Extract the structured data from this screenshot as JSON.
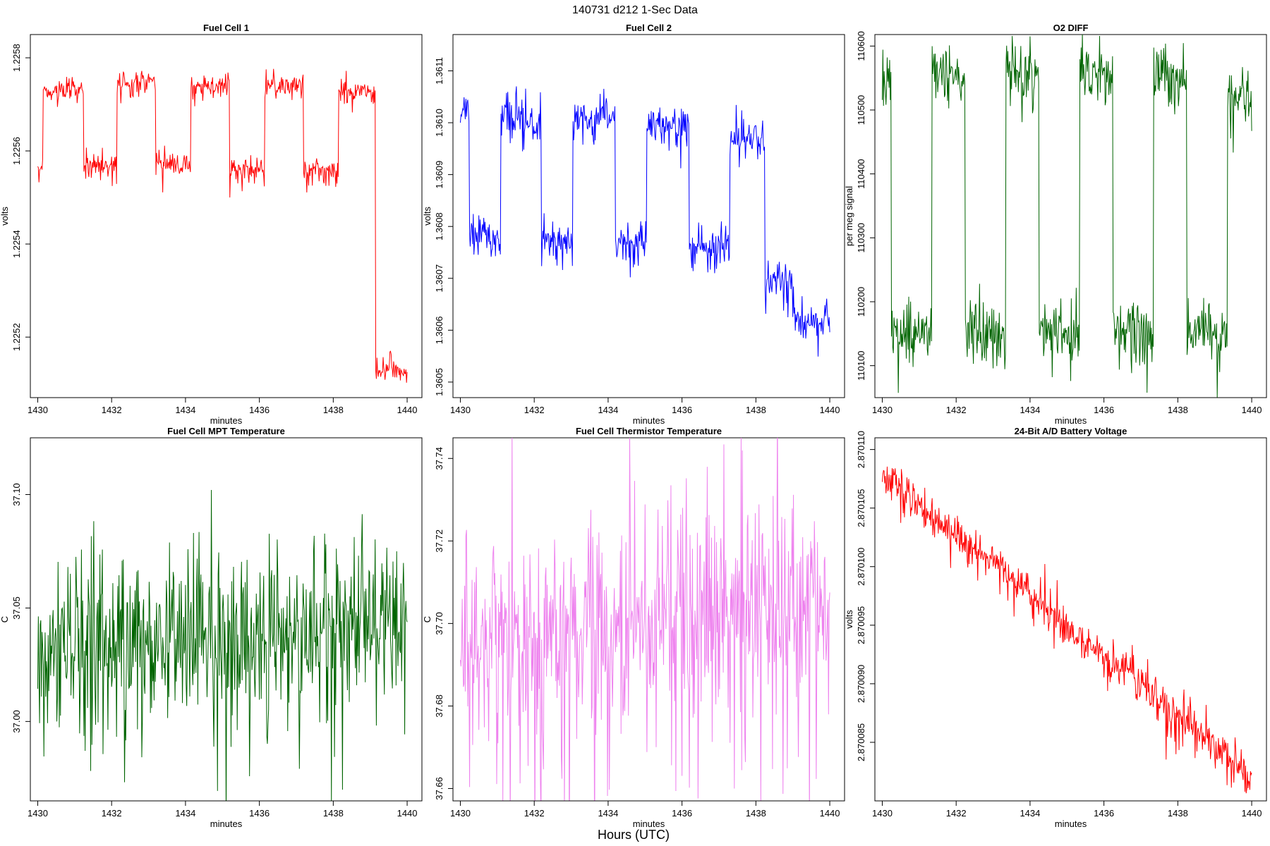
{
  "figure": {
    "title": "140731    d212    1-Sec Data",
    "xlabel_common": "Hours (UTC)"
  },
  "chart_data": [
    {
      "type": "line",
      "title": "Fuel Cell 1",
      "xlabel": "minutes",
      "ylabel": "volts",
      "xlim": [
        1429.8,
        1440.4
      ],
      "ylim": [
        1.22507,
        1.22585
      ],
      "xticks": [
        1430,
        1432,
        1434,
        1436,
        1438,
        1440
      ],
      "yticks": [
        1.2252,
        1.2254,
        1.2256,
        1.2258
      ],
      "ytick_labels": [
        "1.2252",
        "1.2254",
        "1.2256",
        "1.2258"
      ],
      "color": "#ff0000",
      "series": [
        {
          "name": "Fuel Cell 1",
          "pattern": "square_wave",
          "x_start": 1430,
          "x_end": 1440,
          "n": 601,
          "levels": [
            [
              1430.0,
              1.22557
            ],
            [
              1430.15,
              1.22573
            ],
            [
              1431.25,
              1.22557
            ],
            [
              1432.15,
              1.22575
            ],
            [
              1433.2,
              1.22557
            ],
            [
              1434.15,
              1.22574
            ],
            [
              1435.2,
              1.22556
            ],
            [
              1436.15,
              1.22574
            ],
            [
              1437.2,
              1.22556
            ],
            [
              1438.15,
              1.22573
            ],
            [
              1439.15,
              1.22513
            ]
          ],
          "noise": 1.2e-05,
          "seed": 11
        }
      ]
    },
    {
      "type": "line",
      "title": "Fuel Cell 2",
      "xlabel": "minutes",
      "ylabel": "volts",
      "xlim": [
        1429.8,
        1440.4
      ],
      "ylim": [
        1.36047,
        1.36117
      ],
      "xticks": [
        1430,
        1432,
        1434,
        1436,
        1438,
        1440
      ],
      "yticks": [
        1.3605,
        1.3606,
        1.3607,
        1.3608,
        1.3609,
        1.361,
        1.3611
      ],
      "ytick_labels": [
        "1.3605",
        "1.3606",
        "1.3607",
        "1.3608",
        "1.3609",
        "1.3610",
        "1.3611"
      ],
      "color": "#0000ff",
      "series": [
        {
          "name": "Fuel Cell 2",
          "pattern": "square_wave",
          "x_start": 1430,
          "x_end": 1440,
          "n": 601,
          "levels": [
            [
              1430.0,
              1.36102
            ],
            [
              1430.25,
              1.36078
            ],
            [
              1431.1,
              1.36101
            ],
            [
              1432.2,
              1.36077
            ],
            [
              1433.05,
              1.36101
            ],
            [
              1434.2,
              1.36077
            ],
            [
              1435.05,
              1.361
            ],
            [
              1436.2,
              1.36076
            ],
            [
              1437.3,
              1.36097
            ],
            [
              1438.25,
              1.36069
            ],
            [
              1439.0,
              1.36062
            ]
          ],
          "noise": 1.8e-05,
          "seed": 23
        }
      ]
    },
    {
      "type": "line",
      "title": "O2 DIFF",
      "xlabel": "minutes",
      "ylabel": "per meg signal",
      "xlim": [
        1429.8,
        1440.4
      ],
      "ylim": [
        110050,
        110618
      ],
      "xticks": [
        1430,
        1432,
        1434,
        1436,
        1438,
        1440
      ],
      "yticks": [
        110100,
        110200,
        110300,
        110400,
        110500,
        110600
      ],
      "ytick_labels": [
        "110100",
        "110200",
        "110300",
        "110400",
        "110500",
        "110600"
      ],
      "color": "#006400",
      "series": [
        {
          "name": "O2 DIFF",
          "pattern": "square_wave",
          "x_start": 1430,
          "x_end": 1440,
          "n": 601,
          "levels": [
            [
              1430.0,
              110540
            ],
            [
              1430.25,
              110150
            ],
            [
              1431.35,
              110555
            ],
            [
              1432.25,
              110150
            ],
            [
              1433.35,
              110560
            ],
            [
              1434.25,
              110155
            ],
            [
              1435.35,
              110565
            ],
            [
              1436.25,
              110150
            ],
            [
              1437.35,
              110555
            ],
            [
              1438.25,
              110150
            ],
            [
              1439.35,
              110520
            ]
          ],
          "noise": 22,
          "seed": 37
        }
      ]
    },
    {
      "type": "line",
      "title": "Fuel Cell MPT Temperature",
      "xlabel": "minutes",
      "ylabel": "C",
      "xlim": [
        1429.8,
        1440.4
      ],
      "ylim": [
        36.965,
        37.125
      ],
      "xticks": [
        1430,
        1432,
        1434,
        1436,
        1438,
        1440
      ],
      "yticks": [
        37.0,
        37.05,
        37.1
      ],
      "ytick_labels": [
        "37.00",
        "37.05",
        "37.10"
      ],
      "color": "#006400",
      "series": [
        {
          "name": "Fuel Cell MPT Temperature",
          "pattern": "noise",
          "x_start": 1430,
          "x_end": 1440,
          "n": 601,
          "mean_start": 37.035,
          "mean_end": 37.045,
          "noise": 0.018,
          "seed": 53
        }
      ]
    },
    {
      "type": "line",
      "title": "Fuel Cell Thermistor Temperature",
      "xlabel": "minutes",
      "ylabel": "C",
      "xlim": [
        1429.8,
        1440.4
      ],
      "ylim": [
        37.657,
        37.745
      ],
      "xticks": [
        1430,
        1432,
        1434,
        1436,
        1438,
        1440
      ],
      "yticks": [
        37.66,
        37.68,
        37.7,
        37.72,
        37.74
      ],
      "ytick_labels": [
        "37.66",
        "37.68",
        "37.70",
        "37.72",
        "37.74"
      ],
      "color": "#ee82ee",
      "series": [
        {
          "name": "Fuel Cell Thermistor Temperature",
          "pattern": "noise",
          "x_start": 1430,
          "x_end": 1440,
          "n": 601,
          "mean_start": 37.695,
          "mean_end": 37.705,
          "noise": 0.012,
          "seed": 71
        }
      ]
    },
    {
      "type": "line",
      "title": "24-Bit A/D Battery Voltage",
      "xlabel": "minutes",
      "ylabel": "volts",
      "xlim": [
        1429.8,
        1440.4
      ],
      "ylim": [
        2.87008,
        2.870111
      ],
      "xticks": [
        1430,
        1432,
        1434,
        1436,
        1438,
        1440
      ],
      "yticks": [
        2.870085,
        2.87009,
        2.870095,
        2.8701,
        2.870105,
        2.87011
      ],
      "ytick_labels": [
        "2.870085",
        "2.870090",
        "2.870095",
        "2.870100",
        "2.870105",
        "2.870110"
      ],
      "color": "#ff0000",
      "series": [
        {
          "name": "24-Bit A/D Battery Voltage",
          "pattern": "trend",
          "x_start": 1430,
          "x_end": 1440,
          "n": 601,
          "mean_start": 2.870108,
          "mean_end": 2.870082,
          "noise": 8e-07,
          "seed": 89
        }
      ]
    }
  ]
}
